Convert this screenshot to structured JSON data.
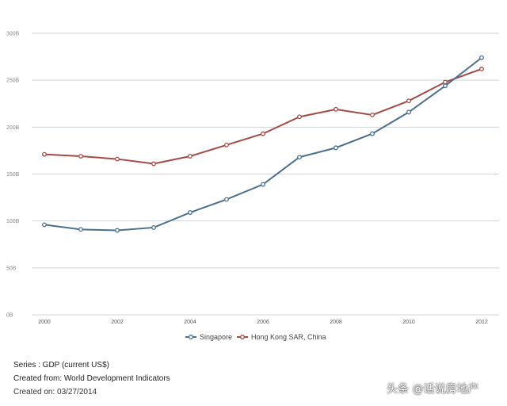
{
  "chart_data": {
    "type": "line",
    "x": [
      "2000",
      "2001",
      "2002",
      "2003",
      "2004",
      "2005",
      "2006",
      "2007",
      "2008",
      "2009",
      "2010",
      "2011",
      "2012"
    ],
    "x_tick_labels": [
      "2000",
      "2002",
      "2004",
      "2006",
      "2008",
      "2010",
      "2012"
    ],
    "y_tick_labels": [
      "0B",
      "50B",
      "100B",
      "150B",
      "200B",
      "250B",
      "300B"
    ],
    "ylim": [
      0,
      300
    ],
    "grid": true,
    "legend_position": "bottom",
    "series": [
      {
        "name": "Singapore",
        "color": "#4a6f8f",
        "values": [
          96,
          91,
          90,
          93,
          109,
          123,
          139,
          168,
          178,
          193,
          216,
          244,
          274
        ]
      },
      {
        "name": "Hong Kong SAR, China",
        "color": "#a64a44",
        "values": [
          171,
          169,
          166,
          161,
          169,
          181,
          193,
          211,
          219,
          213,
          228,
          248,
          262
        ]
      }
    ]
  },
  "footer": {
    "series_line": "Series : GDP (current US$)",
    "created_from": "Created from: World Development Indicators",
    "created_on": "Created on: 03/27/2014"
  },
  "watermark": "头条 @话说房地产"
}
